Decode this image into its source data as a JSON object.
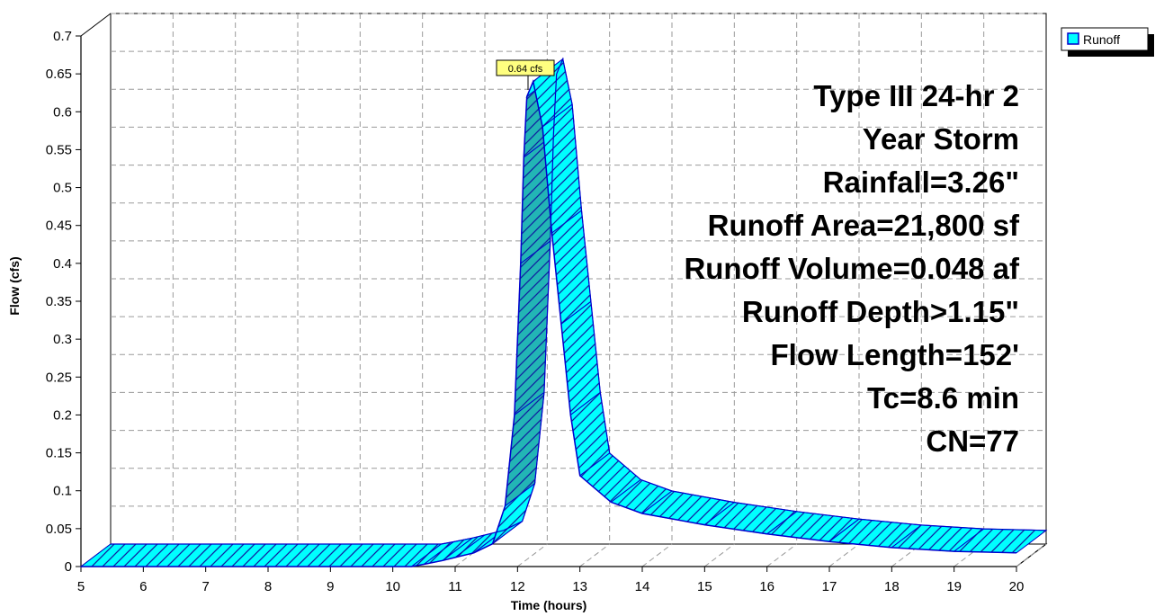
{
  "chart_data": {
    "type": "area",
    "xlabel": "Time  (hours)",
    "ylabel": "Flow  (cfs)",
    "xlim": [
      5,
      20
    ],
    "ylim": [
      0,
      0.7
    ],
    "x_ticks": [
      5,
      6,
      7,
      8,
      9,
      10,
      11,
      12,
      13,
      14,
      15,
      16,
      17,
      18,
      19,
      20
    ],
    "y_ticks": [
      0,
      0.05,
      0.1,
      0.15,
      0.2,
      0.25,
      0.3,
      0.35,
      0.4,
      0.45,
      0.5,
      0.55,
      0.6,
      0.65,
      0.7
    ],
    "y_tick_labels": [
      "0",
      "0.05",
      "0.1",
      "0.15",
      "0.2",
      "0.25",
      "0.3",
      "0.35",
      "0.4",
      "0.45",
      "0.5",
      "0.55",
      "0.6",
      "0.65",
      "0.7"
    ],
    "grid": true,
    "legend_position": "top-right",
    "series": [
      {
        "name": "Runoff",
        "color": "#00FFFF",
        "x": [
          5,
          10.3,
          10.5,
          10.8,
          11.0,
          11.3,
          11.6,
          11.8,
          11.95,
          12.05,
          12.1,
          12.15,
          12.25,
          12.4,
          12.55,
          12.7,
          12.85,
          13.0,
          13.5,
          14.0,
          15.0,
          16.0,
          17.0,
          18.0,
          19.0,
          20.0
        ],
        "y": [
          0,
          0,
          0.003,
          0.008,
          0.012,
          0.018,
          0.03,
          0.08,
          0.2,
          0.4,
          0.54,
          0.62,
          0.64,
          0.58,
          0.44,
          0.32,
          0.2,
          0.12,
          0.085,
          0.07,
          0.055,
          0.043,
          0.033,
          0.025,
          0.02,
          0.018
        ]
      }
    ],
    "peak_label": "0.64 cfs",
    "info_lines": [
      "Type III 24-hr 2",
      "Year Storm",
      "Rainfall=3.26\"",
      "Runoff Area=21,800 sf",
      "Runoff Volume=0.048 af",
      "Runoff Depth>1.15\"",
      "Flow Length=152'",
      "Tc=8.6 min",
      "CN=77"
    ],
    "colors": {
      "fill": "#00FFFF",
      "fill_dark": "#22B5B5",
      "outline": "#0000CC",
      "hatch": "#1020A0",
      "grid": "#9A9A9A",
      "peak_box": "#FFFF80"
    }
  }
}
